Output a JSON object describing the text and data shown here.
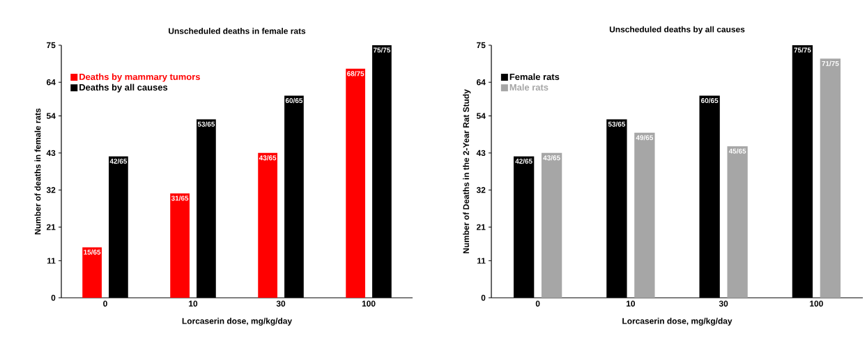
{
  "chart_data": [
    {
      "type": "bar",
      "title": "Unscheduled deaths in female rats",
      "xlabel": "Lorcaserin dose, mg/kg/day",
      "ylabel": "Number of deaths in female rats",
      "categories": [
        "0",
        "10",
        "30",
        "100"
      ],
      "series": [
        {
          "name": "Deaths by mammary tumors",
          "color": "#ff0000",
          "values": [
            15,
            31,
            43,
            68
          ],
          "value_labels": [
            "15/65",
            "31/65",
            "43/65",
            "68/75"
          ]
        },
        {
          "name": "Deaths by all causes",
          "color": "#000000",
          "values": [
            42,
            53,
            60,
            75
          ],
          "value_labels": [
            "42/65",
            "53/65",
            "60/65",
            "75/75"
          ]
        }
      ],
      "ylim": [
        0,
        75
      ],
      "yticks": [
        0,
        11,
        21,
        32,
        43,
        54,
        64,
        75
      ],
      "legend": "top left"
    },
    {
      "type": "bar",
      "title": "Unscheduled deaths by all causes",
      "xlabel": "Lorcaserin dose, mg/kg/day",
      "ylabel": "Number of Deaths in the 2-Year Rat Study",
      "categories": [
        "0",
        "10",
        "30",
        "100"
      ],
      "series": [
        {
          "name": "Female rats",
          "color": "#000000",
          "values": [
            42,
            53,
            60,
            75
          ],
          "value_labels": [
            "42/65",
            "53/65",
            "60/65",
            "75/75"
          ]
        },
        {
          "name": "Male rats",
          "color": "#a6a6a6",
          "values": [
            43,
            49,
            45,
            71
          ],
          "value_labels": [
            "43/65",
            "49/65",
            "45/65",
            "71/75"
          ]
        }
      ],
      "ylim": [
        0,
        75
      ],
      "yticks": [
        0,
        11,
        21,
        32,
        43,
        54,
        64,
        75
      ],
      "legend": "top left"
    }
  ]
}
